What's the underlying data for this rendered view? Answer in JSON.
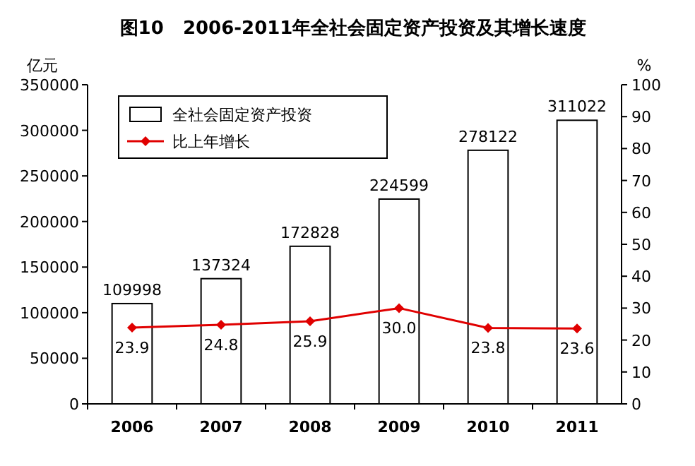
{
  "chart_data": {
    "type": "bar",
    "title": "图10   2006-2011年全社会固定资产投资及其增长速度",
    "ylabel": "亿元",
    "y2label": "%",
    "categories": [
      "2006",
      "2007",
      "2008",
      "2009",
      "2010",
      "2011"
    ],
    "series": [
      {
        "name": "全社会固定资产投资",
        "color": "#ffffff",
        "values": [
          109998,
          137324,
          172828,
          224599,
          278122,
          311022
        ]
      },
      {
        "name": "比上年增长",
        "type": "line",
        "axis": "y2",
        "color": "#e00000",
        "values": [
          23.9,
          24.8,
          25.9,
          30.0,
          23.8,
          23.6
        ],
        "value_labels": [
          "23.9",
          "24.8",
          "25.9",
          "30.0",
          "23.8",
          "23.6"
        ]
      }
    ],
    "ylim": [
      0,
      350000
    ],
    "yticks": [
      0,
      50000,
      100000,
      150000,
      200000,
      250000,
      300000,
      350000
    ],
    "y2lim": [
      0,
      100
    ],
    "y2ticks": [
      0,
      10,
      20,
      30,
      40,
      50,
      60,
      70,
      80,
      90,
      100
    ],
    "data_labels": true,
    "legend": "top left",
    "marker": "diamond",
    "line_style": "solid",
    "grid": false
  }
}
